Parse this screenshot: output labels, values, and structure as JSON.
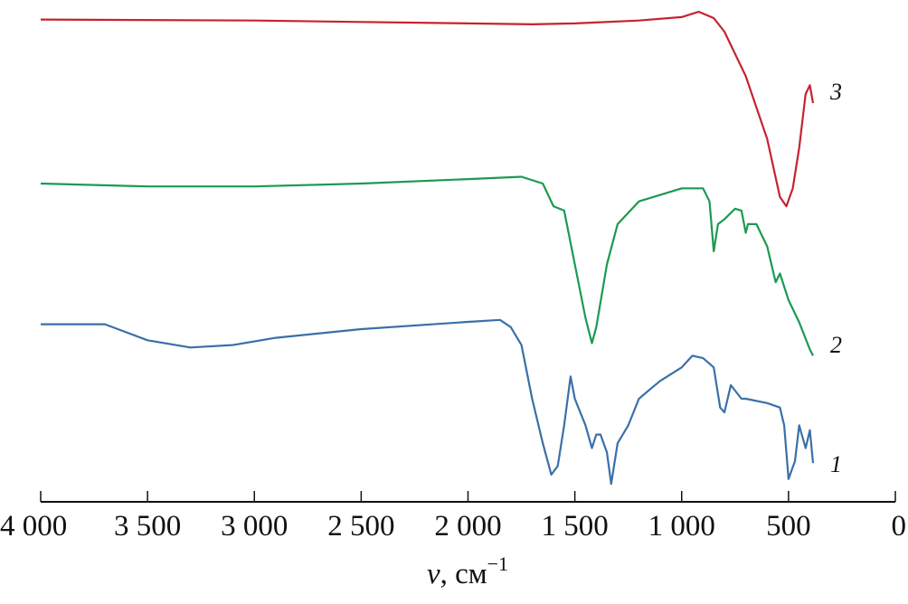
{
  "chart_data": {
    "type": "line",
    "title": "",
    "xlabel": "ν, см⁻¹",
    "xlabel_parts": {
      "symbol": "ν",
      "unit": ", см",
      "exponent": "−1"
    },
    "ylabel": "",
    "xlim": [
      4000,
      0
    ],
    "ylim": [
      0,
      100
    ],
    "x_ticks": [
      4000,
      3500,
      3000,
      2500,
      2000,
      1500,
      1000,
      500,
      0
    ],
    "x_tick_labels": [
      "4 000",
      "3 500",
      "3 000",
      "2 500",
      "2 000",
      "1 500",
      "1 000",
      "500",
      "0"
    ],
    "grid": false,
    "series": [
      {
        "name": "1",
        "color": "#3b6fa9",
        "x": [
          4000,
          3700,
          3500,
          3300,
          3100,
          2900,
          2500,
          2000,
          1850,
          1800,
          1750,
          1700,
          1650,
          1610,
          1580,
          1550,
          1520,
          1500,
          1450,
          1420,
          1400,
          1380,
          1350,
          1330,
          1300,
          1250,
          1200,
          1150,
          1100,
          1000,
          950,
          900,
          850,
          820,
          800,
          770,
          720,
          700,
          600,
          540,
          520,
          500,
          470,
          450,
          420,
          400,
          385
        ],
        "y": [
          33.9,
          33.9,
          30.6,
          29.1,
          29.6,
          31.1,
          32.9,
          34.4,
          34.8,
          33.3,
          29.6,
          18.5,
          9.3,
          2.8,
          4.6,
          13,
          23.1,
          18.5,
          13,
          8.3,
          11.1,
          11.1,
          7.4,
          0.9,
          9.3,
          13,
          18.5,
          20.4,
          22.2,
          25,
          27.4,
          26.9,
          25,
          16.7,
          15.7,
          21.3,
          18.5,
          18.5,
          17.6,
          16.7,
          13,
          1.9,
          5.6,
          13,
          8.3,
          12,
          5.2
        ]
      },
      {
        "name": "2",
        "color": "#1b9a52",
        "x": [
          4000,
          3500,
          3000,
          2500,
          2000,
          1750,
          1650,
          1600,
          1550,
          1500,
          1450,
          1420,
          1400,
          1350,
          1300,
          1200,
          1000,
          900,
          870,
          850,
          830,
          800,
          750,
          720,
          700,
          690,
          650,
          600,
          560,
          540,
          500,
          450,
          400,
          385
        ],
        "y": [
          63,
          62.4,
          62.4,
          63,
          63.9,
          64.4,
          63,
          58.3,
          57.4,
          46.3,
          35.2,
          30,
          33.3,
          46.3,
          54.6,
          59.3,
          62,
          62,
          59.3,
          49,
          54.6,
          55.6,
          57.8,
          57.4,
          52.8,
          54.6,
          54.6,
          50,
          42.6,
          44.4,
          38.9,
          34.3,
          28.7,
          27.4
        ]
      },
      {
        "name": "3",
        "color": "#c62230",
        "x": [
          4000,
          3000,
          2000,
          1700,
          1500,
          1200,
          1000,
          920,
          850,
          800,
          700,
          600,
          540,
          510,
          480,
          450,
          420,
          400,
          385
        ],
        "y": [
          96.9,
          96.7,
          96.1,
          95.9,
          96.1,
          96.7,
          97.4,
          98.5,
          97.2,
          94.4,
          85.2,
          72.2,
          60.2,
          58.3,
          62,
          70.4,
          81.5,
          83.3,
          79.6
        ]
      }
    ],
    "curve_labels": [
      "1",
      "2",
      "3"
    ]
  }
}
